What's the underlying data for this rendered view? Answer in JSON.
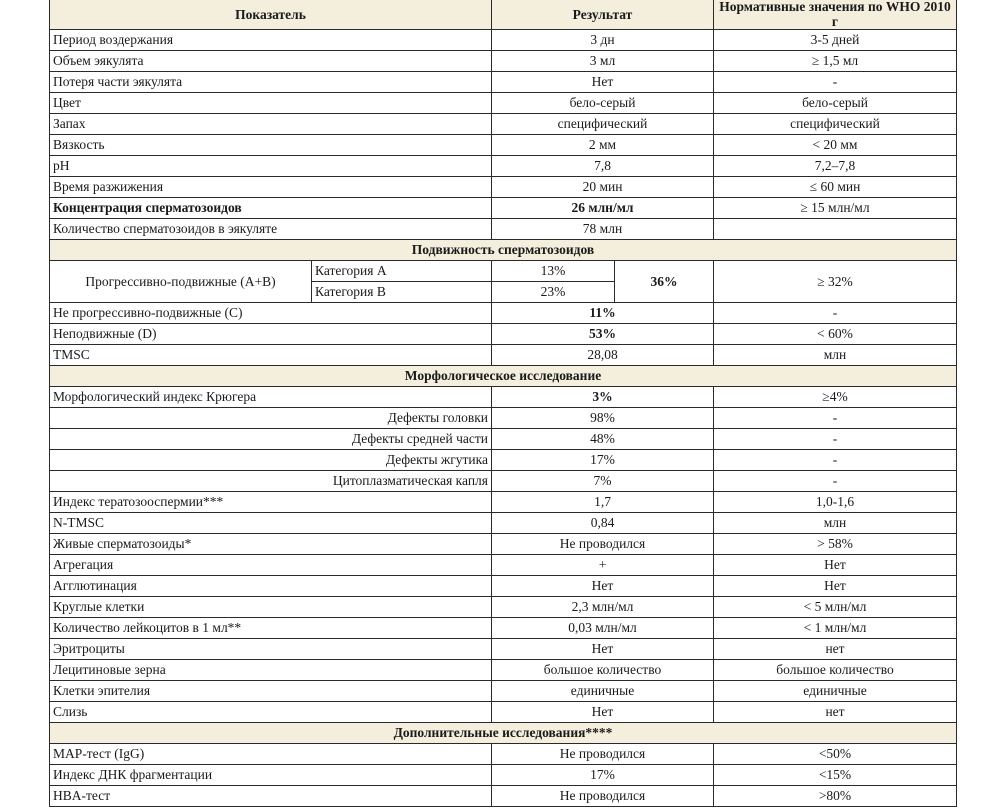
{
  "header": {
    "indicator": "Показатель",
    "result": "Результат",
    "norm": "Нормативные значения по WHO 2010 г"
  },
  "rows_general": [
    {
      "label": "Период воздержания",
      "result": "3 дн",
      "norm": "3-5 дней"
    },
    {
      "label": "Объем эякулята",
      "result": "3 мл",
      "norm": "≥ 1,5 мл"
    },
    {
      "label": "Потеря части эякулята",
      "result": "Нет",
      "norm": "-"
    },
    {
      "label": "Цвет",
      "result": "бело-серый",
      "norm": "бело-серый"
    },
    {
      "label": "Запах",
      "result": "специфический",
      "norm": "специфический"
    },
    {
      "label": "Вязкость",
      "result": "2 мм",
      "norm": "< 20 мм"
    },
    {
      "label": "pH",
      "result": "7,8",
      "norm": "7,2–7,8"
    },
    {
      "label": "Время разжижения",
      "result": "20 мин",
      "norm": "≤ 60 мин"
    },
    {
      "label": "Концентрация сперматозоидов",
      "result": "26 млн/мл",
      "norm": "≥ 15 млн/мл",
      "bold": true
    },
    {
      "label": "Количество сперматозоидов в эякуляте",
      "result": "78 млн",
      "norm": ""
    }
  ],
  "motility": {
    "title": "Подвижность сперматозоидов",
    "progressive": {
      "label": "Прогрессивно-подвижные (A+B)",
      "cat_a_label": "Категория А",
      "cat_a_value": "13%",
      "cat_b_label": "Категория В",
      "cat_b_value": "23%",
      "total": "36%",
      "norm": "≥ 32%"
    },
    "rows": [
      {
        "label": "Не прогрессивно-подвижные (С)",
        "result": "11%",
        "norm": "-",
        "bold_result": true
      },
      {
        "label": "Неподвижные (D)",
        "result": "53%",
        "norm": "< 60%",
        "bold_result": true
      },
      {
        "label": "TMSC",
        "result": "28,08",
        "norm": "млн"
      }
    ]
  },
  "morphology": {
    "title": "Морфологическое исследование",
    "rows": [
      {
        "label": "Морфологический индекс Крюгера",
        "result": "3%",
        "norm": "≥4%",
        "bold_result": true
      },
      {
        "label": "Дефекты головки",
        "result": "98%",
        "norm": "-",
        "indent": true
      },
      {
        "label": "Дефекты средней части",
        "result": "48%",
        "norm": "-",
        "indent": true
      },
      {
        "label": "Дефекты жгутика",
        "result": "17%",
        "norm": "-",
        "indent": true
      },
      {
        "label": "Цитоплазматическая капля",
        "result": "7%",
        "norm": "-",
        "indent": true
      },
      {
        "label": "Индекс тератозооспермии***",
        "result": "1,7",
        "norm": "1,0-1,6"
      },
      {
        "label": "N-TMSC",
        "result": "0,84",
        "norm": "млн"
      },
      {
        "label": "Живые сперматозоиды*",
        "result": "Не проводился",
        "norm": "> 58%"
      },
      {
        "label": "Агрегация",
        "result": "+",
        "norm": "Нет"
      },
      {
        "label": "Агглютинация",
        "result": "Нет",
        "norm": "Нет"
      },
      {
        "label": "Круглые клетки",
        "result": "2,3 млн/мл",
        "norm": "< 5 млн/мл"
      },
      {
        "label": "Количество лейкоцитов в 1 мл**",
        "result": "0,03 млн/мл",
        "norm": "< 1 млн/мл"
      },
      {
        "label": "Эритроциты",
        "result": "Нет",
        "norm": "нет"
      },
      {
        "label": "Лецитиновые зерна",
        "result": "большое количество",
        "norm": "большое количество"
      },
      {
        "label": "Клетки эпителия",
        "result": "единичные",
        "norm": "единичные"
      },
      {
        "label": "Слизь",
        "result": "Нет",
        "norm": "нет"
      }
    ]
  },
  "additional": {
    "title": "Дополнительные исследования****",
    "rows": [
      {
        "label": "MAP-тест (IgG)",
        "result": "Не проводился",
        "norm": "<50%"
      },
      {
        "label": "Индекс ДНК фрагментации",
        "result": "17%",
        "norm": "<15%"
      },
      {
        "label": "HBA-тест",
        "result": "Не проводился",
        "norm": ">80%"
      }
    ]
  }
}
